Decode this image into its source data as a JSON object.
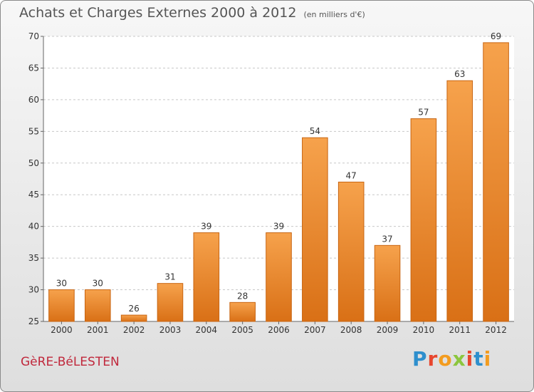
{
  "header": {
    "title": "Achats et Charges Externes 2000 à 2012",
    "subtitle": "(en milliers d'€)"
  },
  "footer": {
    "commune": "GèRE-BéLESTEN",
    "logo": "Proxiti",
    "logo_letter_colors": [
      "#2e8fcd",
      "#e8462e",
      "#f39c1f",
      "#8cc63e",
      "#e8462e",
      "#2e8fcd",
      "#f39c1f"
    ]
  },
  "colors": {
    "bar_light": "#f6a24c",
    "bar_dark": "#d97016",
    "bar_edge": "#c86512",
    "grid": "#c8c8c8",
    "axis_text": "#333333"
  },
  "chart_data": {
    "type": "bar",
    "title": "Achats et Charges Externes 2000 à 2012",
    "subtitle": "(en milliers d'€)",
    "xlabel": "",
    "ylabel": "",
    "categories": [
      "2000",
      "2001",
      "2002",
      "2003",
      "2004",
      "2005",
      "2006",
      "2007",
      "2008",
      "2009",
      "2010",
      "2011",
      "2012"
    ],
    "values": [
      30,
      30,
      26,
      31,
      39,
      28,
      39,
      54,
      47,
      37,
      57,
      63,
      69
    ],
    "ylim": [
      25,
      70
    ],
    "yticks": [
      25,
      30,
      35,
      40,
      45,
      50,
      55,
      60,
      65,
      70
    ],
    "grid": "horizontal-dashed",
    "legend": "none"
  }
}
